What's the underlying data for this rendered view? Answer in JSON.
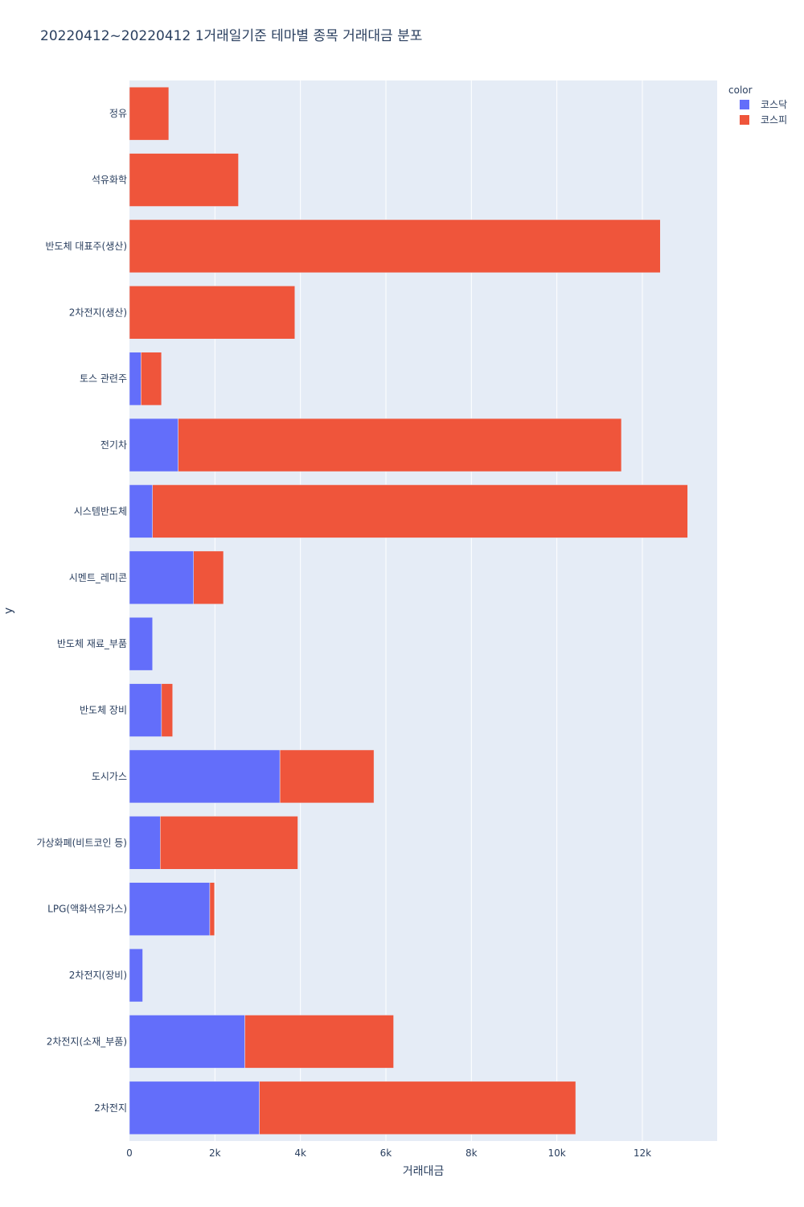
{
  "chart_data": {
    "type": "bar",
    "orientation": "horizontal",
    "barmode": "stack",
    "title": "20220412~20220412 1거래일기준 테마별 종목 거래대금 분포",
    "xlabel": "거래대금",
    "ylabel": "y",
    "xlim": [
      0,
      13750
    ],
    "xticks": [
      0,
      2000,
      4000,
      6000,
      8000,
      10000,
      12000
    ],
    "xtick_labels": [
      "0",
      "2k",
      "4k",
      "6k",
      "8k",
      "10k",
      "12k"
    ],
    "grid": true,
    "legend_title": "color",
    "legend_position": "top-right",
    "categories": [
      "정유",
      "석유화학",
      "반도체 대표주(생산)",
      "2차전지(생산)",
      "토스 관련주",
      "전기차",
      "시스템반도체",
      "시멘트_레미콘",
      "반도체 재료_부품",
      "반도체 장비",
      "도시가스",
      "가상화폐(비트코인 등)",
      "LPG(액화석유가스)",
      "2차전지(장비)",
      "2차전지(소재_부품)",
      "2차전지"
    ],
    "series": [
      {
        "name": "코스닥",
        "color": "#636efa",
        "values": [
          0,
          0,
          0,
          0,
          270,
          1140,
          540,
          1500,
          540,
          750,
          3520,
          720,
          1880,
          310,
          2700,
          3040
        ]
      },
      {
        "name": "코스피",
        "color": "#ef553b",
        "values": [
          920,
          2550,
          12420,
          3870,
          480,
          10370,
          12520,
          700,
          0,
          260,
          2200,
          3220,
          110,
          0,
          3480,
          7400
        ]
      }
    ]
  }
}
